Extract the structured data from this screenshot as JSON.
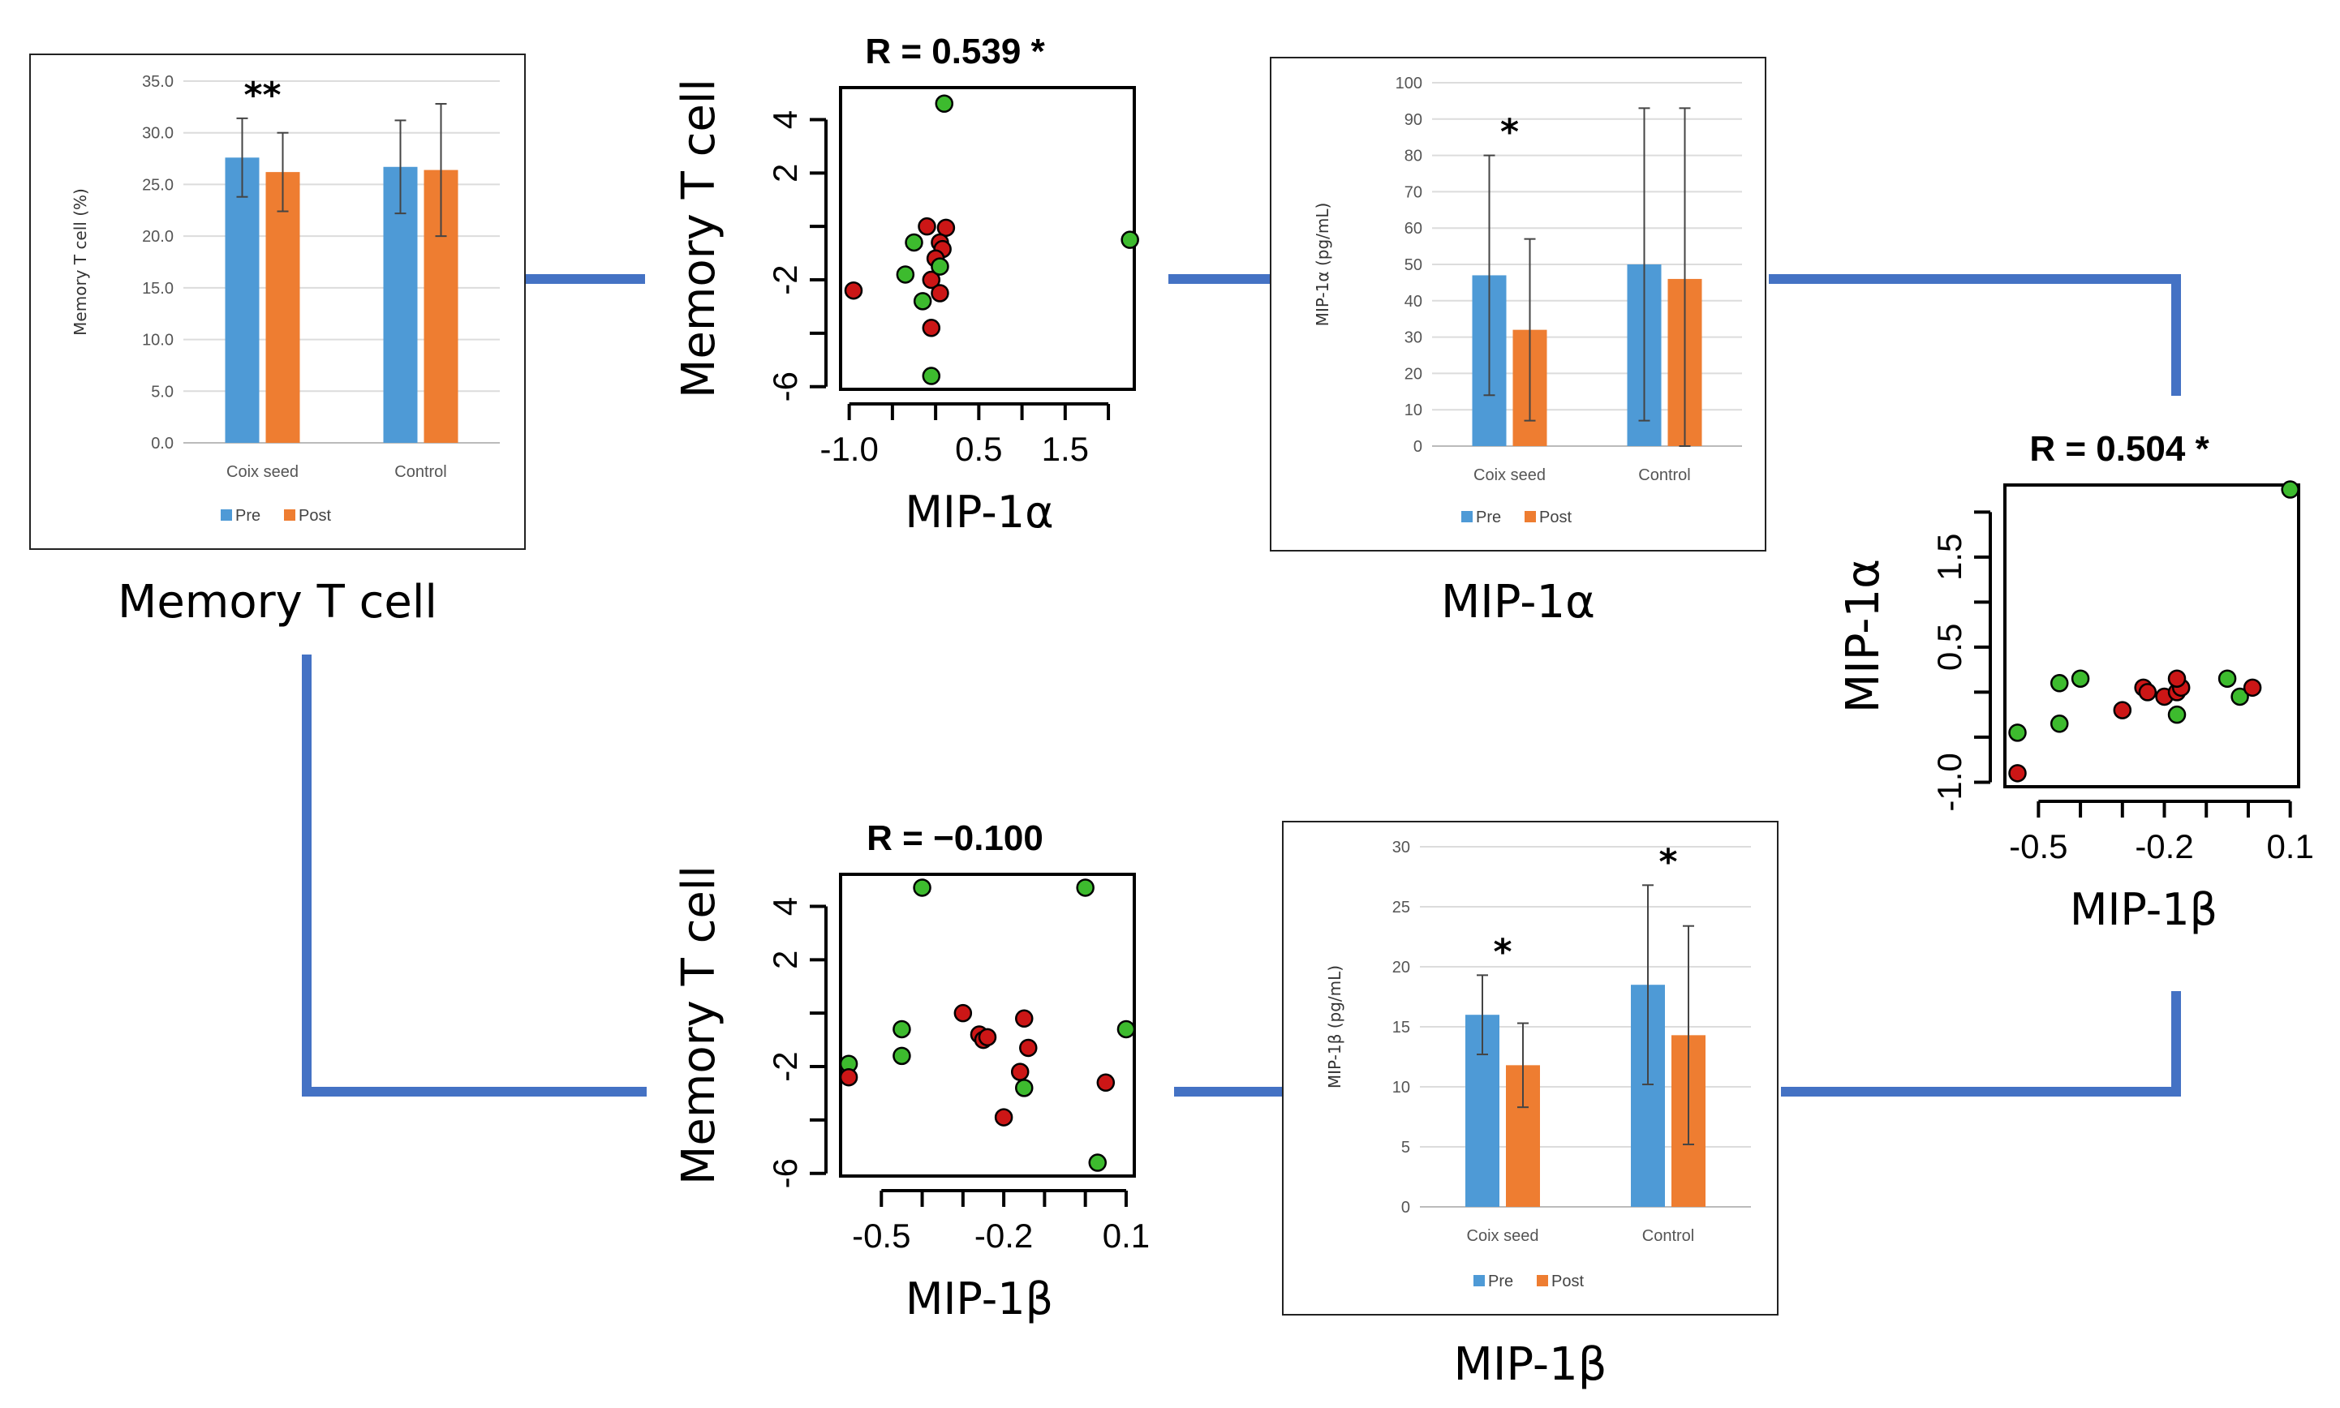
{
  "colors": {
    "pre": "#4e9ad6",
    "post": "#ee7d31",
    "connector": "#4472c4",
    "green_point": "#3dbb2e",
    "red_point": "#cc1616"
  },
  "captions": {
    "memory_t_cell": "Memory T cell",
    "mip1a_bar": "MIP-1α",
    "mip1b_bar": "MIP-1β"
  },
  "chart_data": [
    {
      "id": "bar_memory",
      "type": "bar",
      "title": "",
      "ylabel": "Memory T cell (%)",
      "xlabel": "",
      "ylim": [
        0,
        35
      ],
      "yticks": [
        "0.0",
        "5.0",
        "10.0",
        "15.0",
        "20.0",
        "25.0",
        "30.0",
        "35.0"
      ],
      "ytick_values": [
        0,
        5,
        10,
        15,
        20,
        25,
        30,
        35
      ],
      "categories": [
        "Coix seed",
        "Control"
      ],
      "series": [
        {
          "name": "Pre",
          "values": [
            27.6,
            26.7
          ],
          "errors": [
            3.8,
            4.5
          ]
        },
        {
          "name": "Post",
          "values": [
            26.2,
            26.4
          ],
          "errors": [
            3.8,
            6.4
          ]
        }
      ],
      "annotations": [
        {
          "category": 0,
          "text": "**"
        }
      ],
      "legend": [
        "Pre",
        "Post"
      ],
      "legend_position": "bottom"
    },
    {
      "id": "bar_mip1a",
      "type": "bar",
      "ylabel": "MIP-1α (pg/mL)",
      "ylim": [
        0,
        100
      ],
      "yticks": [
        "0",
        "10",
        "20",
        "30",
        "40",
        "50",
        "60",
        "70",
        "80",
        "90",
        "100"
      ],
      "ytick_values": [
        0,
        10,
        20,
        30,
        40,
        50,
        60,
        70,
        80,
        90,
        100
      ],
      "categories": [
        "Coix seed",
        "Control"
      ],
      "series": [
        {
          "name": "Pre",
          "values": [
            47,
            50
          ],
          "errors": [
            33,
            43
          ]
        },
        {
          "name": "Post",
          "values": [
            32,
            46
          ],
          "errors": [
            25,
            47
          ]
        }
      ],
      "annotations": [
        {
          "category": 0,
          "text": "*"
        }
      ],
      "legend": [
        "Pre",
        "Post"
      ],
      "legend_position": "bottom"
    },
    {
      "id": "bar_mip1b",
      "type": "bar",
      "ylabel": "MIP-1β (pg/mL)",
      "ylim": [
        0,
        30
      ],
      "yticks": [
        "0",
        "5",
        "10",
        "15",
        "20",
        "25",
        "30"
      ],
      "ytick_values": [
        0,
        5,
        10,
        15,
        20,
        25,
        30
      ],
      "categories": [
        "Coix seed",
        "Control"
      ],
      "series": [
        {
          "name": "Pre",
          "values": [
            16,
            18.5
          ],
          "errors": [
            3.3,
            8.3
          ]
        },
        {
          "name": "Post",
          "values": [
            11.8,
            14.3
          ],
          "errors": [
            3.5,
            9.1
          ]
        }
      ],
      "annotations": [
        {
          "category": 0,
          "text": "*"
        },
        {
          "category": 1,
          "text": "*"
        }
      ],
      "legend": [
        "Pre",
        "Post"
      ],
      "legend_position": "bottom"
    },
    {
      "id": "scatter_mt_mip1a",
      "type": "scatter",
      "title": "R = 0.539 *",
      "xlabel": "MIP-1α",
      "ylabel": "Memory T cell",
      "xlim": [
        -1.1,
        2.3
      ],
      "ylim": [
        -6.1,
        5.2
      ],
      "xticks": [
        "-1.0",
        "0.5",
        "1.5"
      ],
      "xtick_values": [
        -1.0,
        -0.5,
        0,
        0.5,
        1.0,
        1.5,
        2.0
      ],
      "xtick_labeled": [
        -1.0,
        0.5,
        1.5
      ],
      "yticks": [
        "-6",
        "-2",
        "2",
        "4"
      ],
      "ytick_values": [
        -6,
        -4,
        -2,
        0,
        2,
        4
      ],
      "ytick_labeled": [
        -6,
        -2,
        2,
        4
      ],
      "points": [
        {
          "x": 0.1,
          "y": 4.6,
          "color": "green"
        },
        {
          "x": 2.25,
          "y": -0.5,
          "color": "green"
        },
        {
          "x": -0.95,
          "y": -2.4,
          "color": "red"
        },
        {
          "x": -0.1,
          "y": -0.0,
          "color": "red"
        },
        {
          "x": 0.12,
          "y": -0.05,
          "color": "red"
        },
        {
          "x": 0.05,
          "y": -0.6,
          "color": "red"
        },
        {
          "x": 0.08,
          "y": -0.85,
          "color": "red"
        },
        {
          "x": 0.0,
          "y": -1.2,
          "color": "red"
        },
        {
          "x": -0.05,
          "y": -2.0,
          "color": "red"
        },
        {
          "x": 0.05,
          "y": -2.5,
          "color": "red"
        },
        {
          "x": -0.05,
          "y": -3.8,
          "color": "red"
        },
        {
          "x": -0.25,
          "y": -0.6,
          "color": "green"
        },
        {
          "x": -0.35,
          "y": -1.8,
          "color": "green"
        },
        {
          "x": 0.05,
          "y": -1.5,
          "color": "green"
        },
        {
          "x": -0.15,
          "y": -2.8,
          "color": "green"
        },
        {
          "x": -0.05,
          "y": -5.6,
          "color": "green"
        }
      ]
    },
    {
      "id": "scatter_mip1a_mip1b",
      "type": "scatter",
      "title": "R = 0.504 *",
      "xlabel": "MIP-1β",
      "ylabel": "MIP-1α",
      "xlim": [
        -0.58,
        0.12
      ],
      "ylim": [
        -1.05,
        2.3
      ],
      "xticks": [
        "-0.5",
        "-0.2",
        "0.1"
      ],
      "xtick_values": [
        -0.5,
        -0.4,
        -0.3,
        -0.2,
        -0.1,
        0.0,
        0.1
      ],
      "xtick_labeled": [
        -0.5,
        -0.2,
        0.1
      ],
      "yticks": [
        "-1.0",
        "0.5",
        "1.5"
      ],
      "ytick_values": [
        -1.0,
        -0.5,
        0.0,
        0.5,
        1.0,
        1.5,
        2.0
      ],
      "ytick_labeled": [
        -1.0,
        0.5,
        1.5
      ],
      "points": [
        {
          "x": 0.1,
          "y": 2.25,
          "color": "green"
        },
        {
          "x": -0.55,
          "y": -0.9,
          "color": "red"
        },
        {
          "x": -0.55,
          "y": -0.45,
          "color": "green"
        },
        {
          "x": -0.45,
          "y": -0.35,
          "color": "green"
        },
        {
          "x": -0.45,
          "y": 0.1,
          "color": "green"
        },
        {
          "x": -0.4,
          "y": 0.15,
          "color": "green"
        },
        {
          "x": -0.3,
          "y": -0.2,
          "color": "red"
        },
        {
          "x": -0.25,
          "y": 0.05,
          "color": "red"
        },
        {
          "x": -0.24,
          "y": 0.0,
          "color": "red"
        },
        {
          "x": -0.2,
          "y": -0.05,
          "color": "red"
        },
        {
          "x": -0.17,
          "y": 0.0,
          "color": "red"
        },
        {
          "x": -0.16,
          "y": 0.05,
          "color": "red"
        },
        {
          "x": -0.17,
          "y": 0.15,
          "color": "red"
        },
        {
          "x": -0.17,
          "y": -0.25,
          "color": "green"
        },
        {
          "x": -0.05,
          "y": 0.15,
          "color": "green"
        },
        {
          "x": -0.02,
          "y": -0.05,
          "color": "green"
        },
        {
          "x": 0.01,
          "y": 0.05,
          "color": "red"
        }
      ]
    },
    {
      "id": "scatter_mt_mip1b",
      "type": "scatter",
      "title": "R = −0.100",
      "xlabel": "MIP-1β",
      "ylabel": "Memory T cell",
      "xlim": [
        -0.6,
        0.12
      ],
      "ylim": [
        -6.1,
        5.2
      ],
      "xticks": [
        "-0.5",
        "-0.2",
        "0.1"
      ],
      "xtick_values": [
        -0.5,
        -0.4,
        -0.3,
        -0.2,
        -0.1,
        0.0,
        0.1
      ],
      "xtick_labeled": [
        -0.5,
        -0.2,
        0.1
      ],
      "yticks": [
        "-6",
        "-2",
        "2",
        "4"
      ],
      "ytick_values": [
        -6,
        -4,
        -2,
        0,
        2,
        4
      ],
      "ytick_labeled": [
        -6,
        -2,
        2,
        4
      ],
      "points": [
        {
          "x": -0.4,
          "y": 4.7,
          "color": "green"
        },
        {
          "x": 0.0,
          "y": 4.7,
          "color": "green"
        },
        {
          "x": -0.58,
          "y": -1.9,
          "color": "green"
        },
        {
          "x": -0.58,
          "y": -2.4,
          "color": "red"
        },
        {
          "x": -0.45,
          "y": -0.6,
          "color": "green"
        },
        {
          "x": -0.45,
          "y": -1.6,
          "color": "green"
        },
        {
          "x": -0.3,
          "y": 0.0,
          "color": "red"
        },
        {
          "x": -0.26,
          "y": -0.8,
          "color": "red"
        },
        {
          "x": -0.25,
          "y": -1.0,
          "color": "red"
        },
        {
          "x": -0.24,
          "y": -0.9,
          "color": "red"
        },
        {
          "x": -0.15,
          "y": -0.2,
          "color": "red"
        },
        {
          "x": -0.14,
          "y": -1.3,
          "color": "red"
        },
        {
          "x": -0.16,
          "y": -2.2,
          "color": "red"
        },
        {
          "x": -0.2,
          "y": -3.9,
          "color": "red"
        },
        {
          "x": -0.15,
          "y": -2.8,
          "color": "green"
        },
        {
          "x": 0.05,
          "y": -2.6,
          "color": "red"
        },
        {
          "x": 0.1,
          "y": -0.6,
          "color": "green"
        },
        {
          "x": 0.03,
          "y": -5.6,
          "color": "green"
        }
      ]
    }
  ]
}
